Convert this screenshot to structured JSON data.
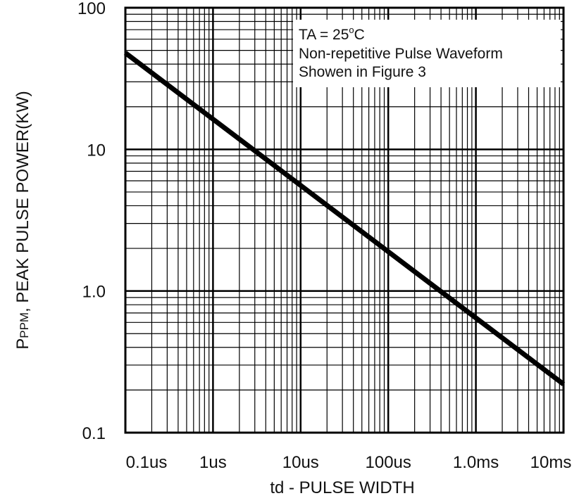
{
  "chart_data": {
    "type": "line",
    "title": "",
    "xlabel": "td - PULSE WIDTH",
    "ylabel_main": "P",
    "ylabel_sub": "PPM",
    "ylabel_rest": ", PEAK PULSE POWER(KW)",
    "x_scale": "log",
    "y_scale": "log",
    "xlim": [
      "0.1us",
      "10ms"
    ],
    "ylim": [
      0.1,
      100
    ],
    "grid": true,
    "x_ticks": [
      "0.1us",
      "1us",
      "10us",
      "100us",
      "1.0ms",
      "10ms"
    ],
    "y_ticks": [
      "100",
      "10",
      "1.0",
      "0.1"
    ],
    "annotation": {
      "line1_a": "TA = 25",
      "line1_sup": "o",
      "line1_b": "C",
      "line2": "Non-repetitive Pulse Waveform",
      "line3": "Showen in Figure 3"
    },
    "series": [
      {
        "x": [
          "0.1us",
          "10ms"
        ],
        "y": [
          48,
          0.22
        ]
      }
    ]
  }
}
